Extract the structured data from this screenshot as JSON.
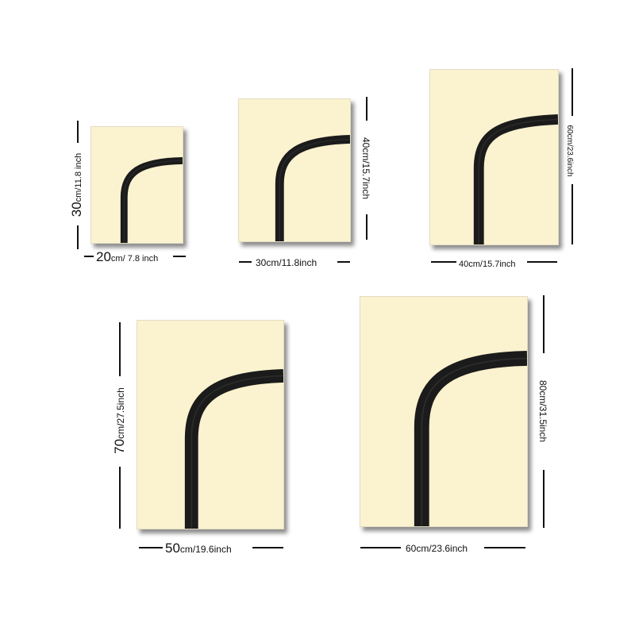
{
  "posters": [
    {
      "width_label": {
        "num": "20",
        "unit": "cm/ 7.8 inch"
      },
      "height_label": {
        "num": "30",
        "unit": "cm/11.8 inch"
      }
    },
    {
      "width_label": {
        "num": "",
        "unit": "30cm/11.8inch"
      },
      "height_label": {
        "num": "",
        "unit": "40cm/15.7inch"
      }
    },
    {
      "width_label": {
        "num": "",
        "unit": "40cm/15.7inch"
      },
      "height_label": {
        "num": "",
        "unit": "60cm/23.6inch"
      }
    },
    {
      "width_label": {
        "num": "50",
        "unit": "cm/19.6inch"
      },
      "height_label": {
        "num": "70",
        "unit": "cm/27.5inch"
      }
    },
    {
      "width_label": {
        "num": "",
        "unit": "60cm/23.6inch"
      },
      "height_label": {
        "num": "",
        "unit": "80cm/31.5inch"
      }
    }
  ],
  "colors": {
    "background": "#ffffff",
    "poster_fill": "#fbf2cf",
    "stroke": "#1b1b1b"
  }
}
